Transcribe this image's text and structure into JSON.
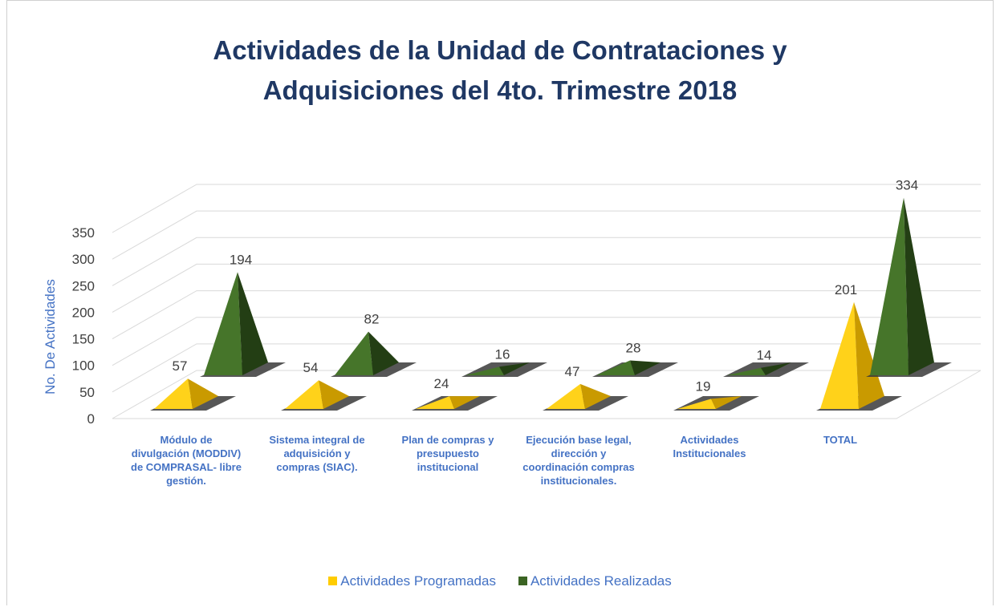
{
  "chart_data": {
    "type": "pyramid3d",
    "title": "Actividades de la Unidad de Contrataciones y Adquisiciones del 4to. Trimestre 2018",
    "y_label": "No. De Actividades",
    "categories": [
      "Módulo de divulgación (MODDIV) de COMPRASAL- libre gestión.",
      "Sistema integral de adquisición y compras (SIAC).",
      "Plan de compras y presupuesto institucional",
      "Ejecución base legal, dirección y coordinación compras institucionales.",
      "Actividades Institucionales",
      "TOTAL"
    ],
    "series": [
      {
        "name": "Actividades Programadas",
        "color": "#ffcc00",
        "values": [
          57,
          54,
          24,
          47,
          19,
          201
        ]
      },
      {
        "name": "Actividades Realizadas",
        "color": "#3b6423",
        "values": [
          194,
          82,
          16,
          28,
          14,
          334
        ]
      }
    ],
    "ylim": [
      0,
      350
    ],
    "yticks": [
      0,
      50,
      100,
      150,
      200,
      250,
      300,
      350
    ],
    "grid": true,
    "legend": "bottom"
  }
}
